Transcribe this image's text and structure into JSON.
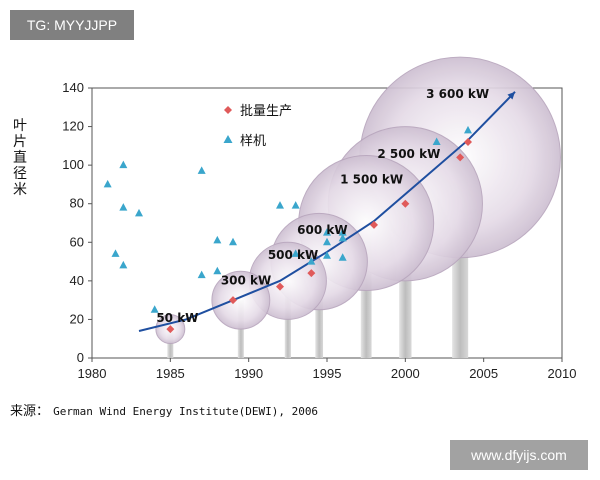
{
  "watermark_top": "TG: MYYJJPP",
  "watermark_bottom": "www.dfyijs.com",
  "source_label": "来源：",
  "source_text": "German Wind Energy Institute(DEWI), 2006",
  "chart_data": {
    "type": "scatter",
    "ylabel": "叶片直径米",
    "xlim": [
      1980,
      2010
    ],
    "ylim": [
      0,
      140
    ],
    "x_ticks": [
      1980,
      1985,
      1990,
      1995,
      2000,
      2005,
      2010
    ],
    "y_ticks": [
      0,
      20,
      40,
      60,
      80,
      100,
      120,
      140
    ],
    "grid": false,
    "legend_position": "top-center",
    "colors": {
      "production": "#e05a5a",
      "prototype": "#3aa6cc",
      "trend": "#1f4fa0",
      "bubble_fill": "#e6dce8",
      "bubble_stroke": "#b8a6bd",
      "tower": "#c9c9c9"
    },
    "series": [
      {
        "name": "批量生产",
        "marker": "diamond",
        "points": [
          [
            1985,
            15
          ],
          [
            1989,
            30
          ],
          [
            1992,
            37
          ],
          [
            1994,
            44
          ],
          [
            1998,
            69
          ],
          [
            2000,
            80
          ],
          [
            2003.5,
            104
          ],
          [
            2004,
            112
          ]
        ]
      },
      {
        "name": "样机",
        "marker": "triangle",
        "points": [
          [
            1981,
            90
          ],
          [
            1981.5,
            54
          ],
          [
            1982,
            100
          ],
          [
            1982,
            78
          ],
          [
            1982,
            48
          ],
          [
            1983,
            75
          ],
          [
            1984,
            25
          ],
          [
            1987,
            97
          ],
          [
            1987,
            43
          ],
          [
            1988,
            61
          ],
          [
            1988,
            45
          ],
          [
            1989,
            60
          ],
          [
            1992,
            79
          ],
          [
            1993,
            79
          ],
          [
            1993,
            54
          ],
          [
            1994,
            50
          ],
          [
            1995,
            65
          ],
          [
            1995,
            60
          ],
          [
            1995,
            53
          ],
          [
            1996,
            65
          ],
          [
            1996,
            62
          ],
          [
            1996,
            52
          ],
          [
            2002,
            112
          ],
          [
            2004,
            118
          ]
        ]
      }
    ],
    "trend_line": [
      [
        1983,
        14
      ],
      [
        1986,
        20
      ],
      [
        1989,
        30
      ],
      [
        1992,
        40
      ],
      [
        1995,
        55
      ],
      [
        1998,
        71
      ],
      [
        2001,
        92
      ],
      [
        2004,
        113
      ],
      [
        2007,
        138
      ]
    ],
    "turbines": [
      {
        "label": "50 kW",
        "year": 1985,
        "diameter": 15
      },
      {
        "label": "300 kW",
        "year": 1989.5,
        "diameter": 30
      },
      {
        "label": "500 kW",
        "year": 1992.5,
        "diameter": 40
      },
      {
        "label": "600 kW",
        "year": 1994.5,
        "diameter": 50
      },
      {
        "label": "1 500 kW",
        "year": 1997.5,
        "diameter": 70
      },
      {
        "label": "2 500 kW",
        "year": 2000,
        "diameter": 80
      },
      {
        "label": "3 600 kW",
        "year": 2003.5,
        "diameter": 104
      }
    ]
  }
}
